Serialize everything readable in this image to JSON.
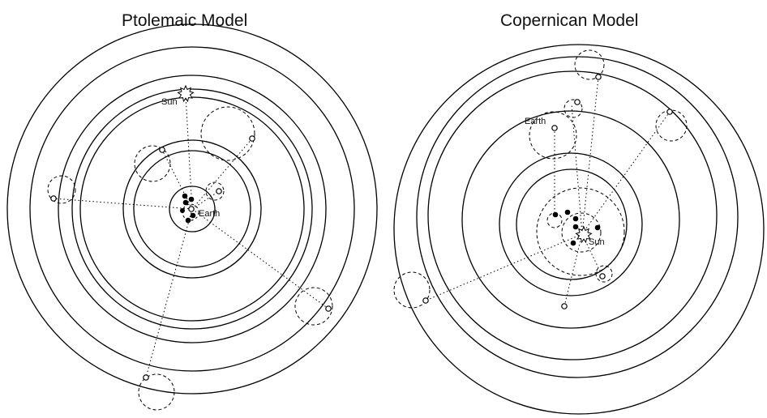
{
  "panels": {
    "ptolemaic": {
      "title": "Ptolemaic Model",
      "sun_label": "Sun",
      "earth_label": "Earth"
    },
    "copernican": {
      "title": "Copernican Model",
      "sun_label": "Sun",
      "earth_label": "Earth"
    }
  },
  "colors": {
    "line": "#000000",
    "background": "#ffffff"
  }
}
